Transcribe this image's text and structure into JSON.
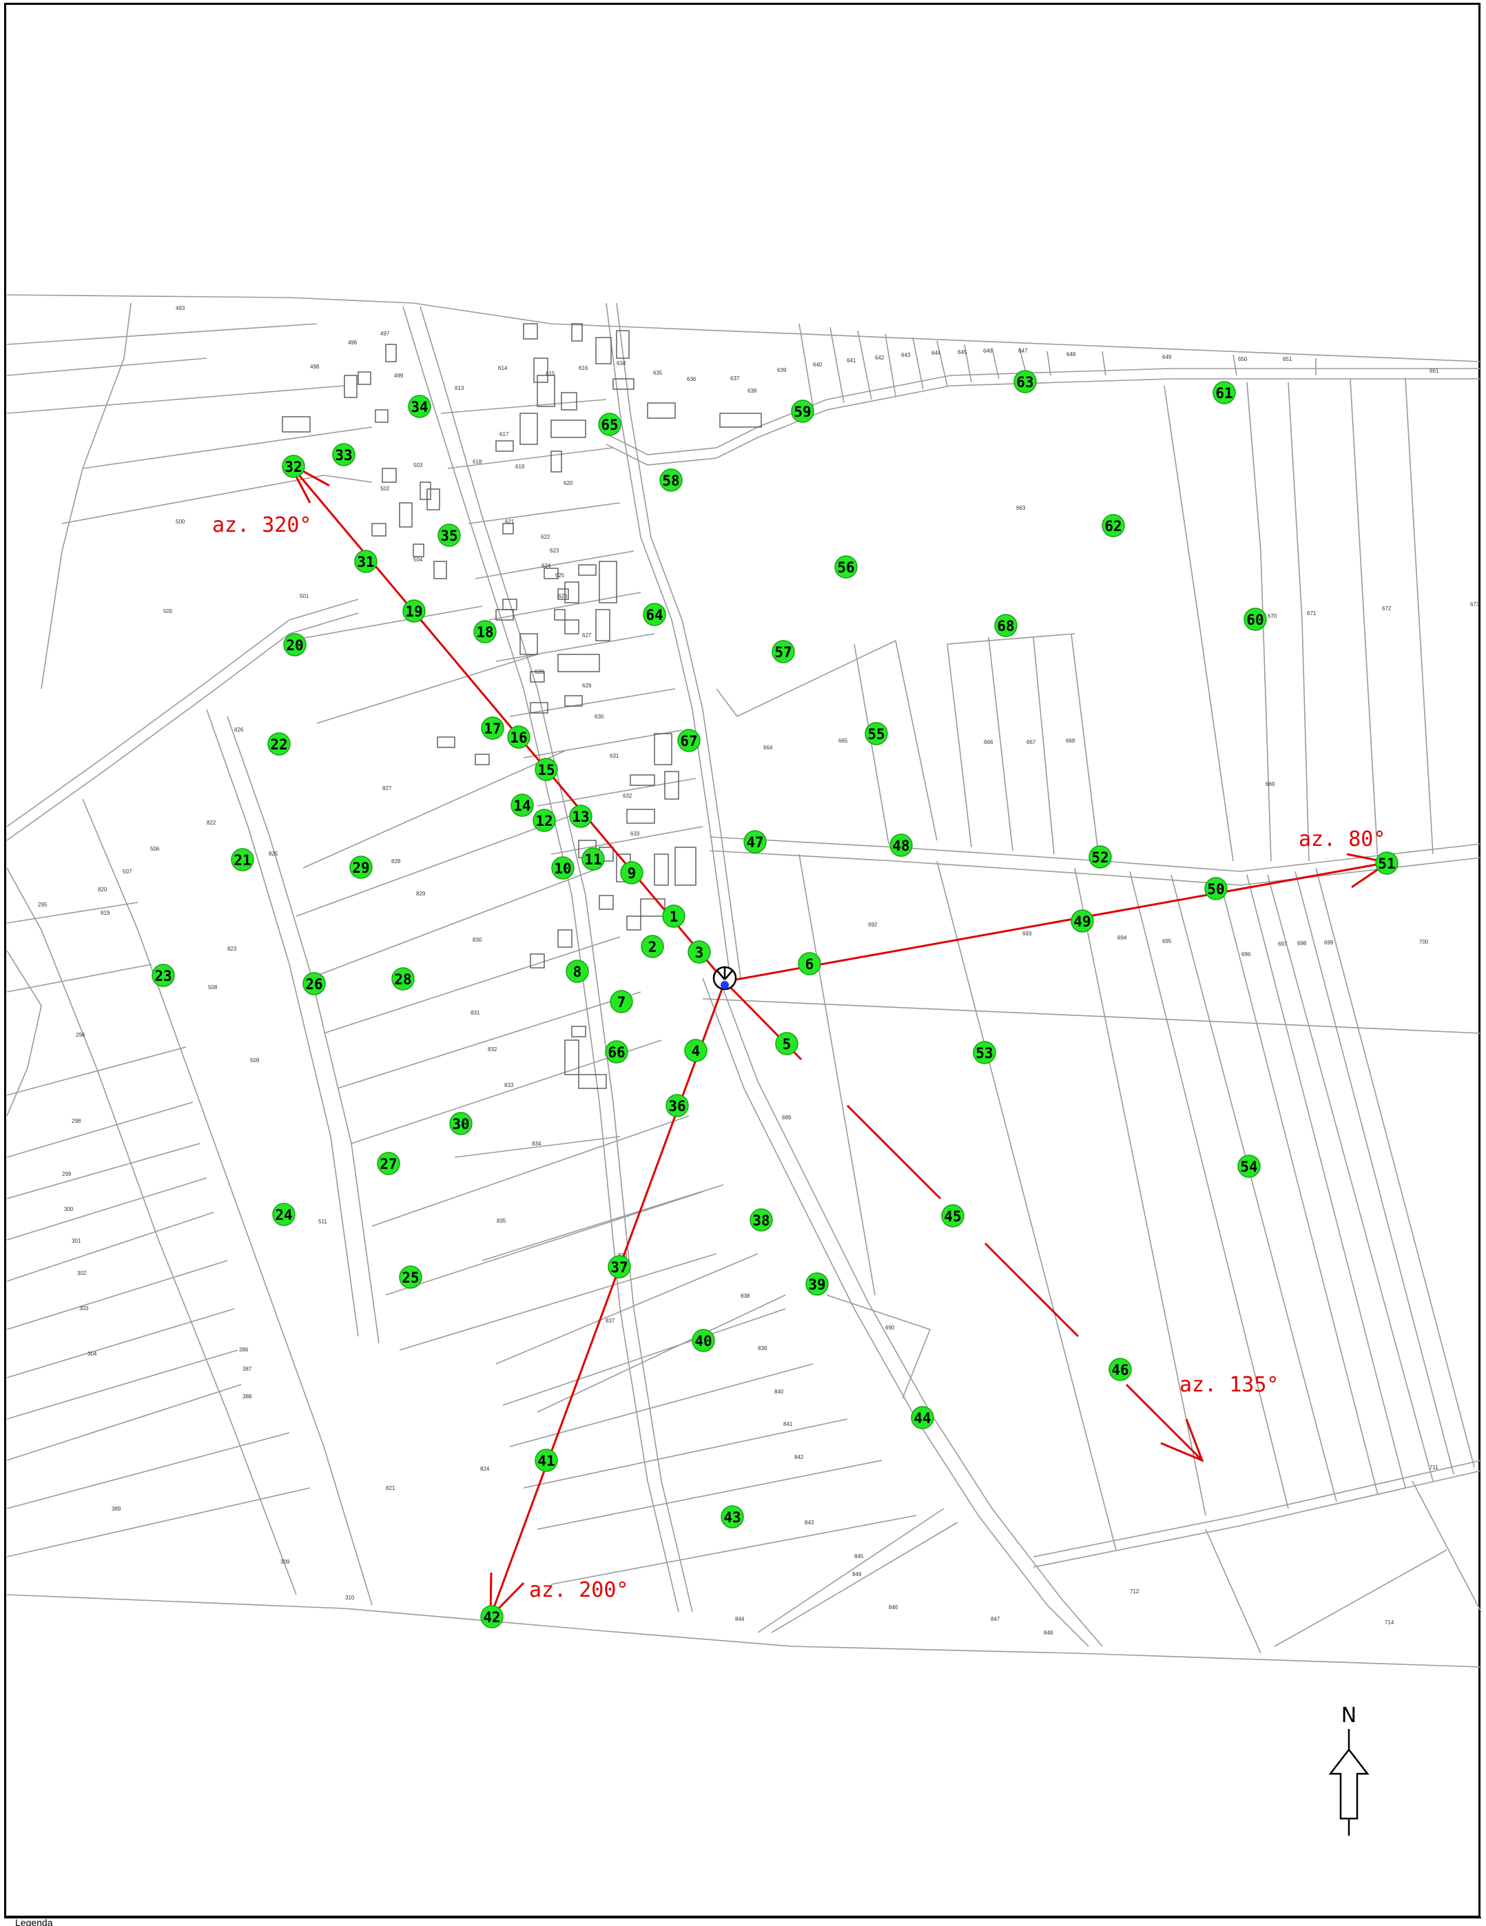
{
  "map": {
    "north_label": "N",
    "legend_label": "Legenda",
    "colors": {
      "point_fill": "#22e822",
      "azimuth_line": "#e00000",
      "parcel_line": "#9a9a9a"
    },
    "center_symbol": "observation-point-icon",
    "azimuths": [
      {
        "id": "az320",
        "label": "az. 320°"
      },
      {
        "id": "az80",
        "label": "az. 80°"
      },
      {
        "id": "az135",
        "label": "az. 135°"
      },
      {
        "id": "az200",
        "label": "az. 200°"
      }
    ],
    "points": [
      "1",
      "2",
      "3",
      "4",
      "5",
      "6",
      "7",
      "8",
      "9",
      "10",
      "11",
      "12",
      "13",
      "14",
      "15",
      "16",
      "17",
      "18",
      "19",
      "20",
      "21",
      "22",
      "23",
      "24",
      "25",
      "26",
      "27",
      "28",
      "29",
      "30",
      "31",
      "32",
      "33",
      "34",
      "35",
      "36",
      "37",
      "38",
      "39",
      "40",
      "41",
      "42",
      "43",
      "44",
      "45",
      "46",
      "47",
      "48",
      "49",
      "50",
      "51",
      "52",
      "53",
      "54",
      "55",
      "56",
      "57",
      "58",
      "59",
      "60",
      "61",
      "62",
      "63",
      "64",
      "65",
      "66",
      "67",
      "68"
    ],
    "parcel_labels": [
      "493",
      "496",
      "497",
      "498",
      "499",
      "500",
      "501",
      "502",
      "503",
      "504",
      "505",
      "506",
      "507",
      "508",
      "509",
      "511",
      "613",
      "614",
      "615",
      "616",
      "617",
      "618",
      "619",
      "620",
      "621",
      "622",
      "623",
      "624",
      "625",
      "626",
      "627",
      "628",
      "629",
      "630",
      "631",
      "632",
      "633",
      "634",
      "635",
      "636",
      "637",
      "638",
      "639",
      "640",
      "641",
      "642",
      "643",
      "644",
      "645",
      "646",
      "647",
      "648",
      "649",
      "650",
      "651",
      "661",
      "663",
      "664",
      "665",
      "666",
      "667",
      "668",
      "669",
      "670",
      "671",
      "672",
      "673",
      "689",
      "690",
      "692",
      "693",
      "694",
      "695",
      "696",
      "697",
      "698",
      "699",
      "700",
      "711",
      "712",
      "714",
      "819",
      "820",
      "821",
      "822",
      "823",
      "824",
      "825",
      "826",
      "827",
      "828",
      "829",
      "830",
      "831",
      "832",
      "833",
      "834",
      "835",
      "836",
      "837",
      "838",
      "839",
      "840",
      "841",
      "842",
      "843",
      "844",
      "845",
      "846",
      "847",
      "848",
      "849",
      "295",
      "296",
      "298",
      "299",
      "300",
      "301",
      "302",
      "303",
      "304",
      "386",
      "387",
      "388",
      "389",
      "309",
      "310"
    ]
  }
}
